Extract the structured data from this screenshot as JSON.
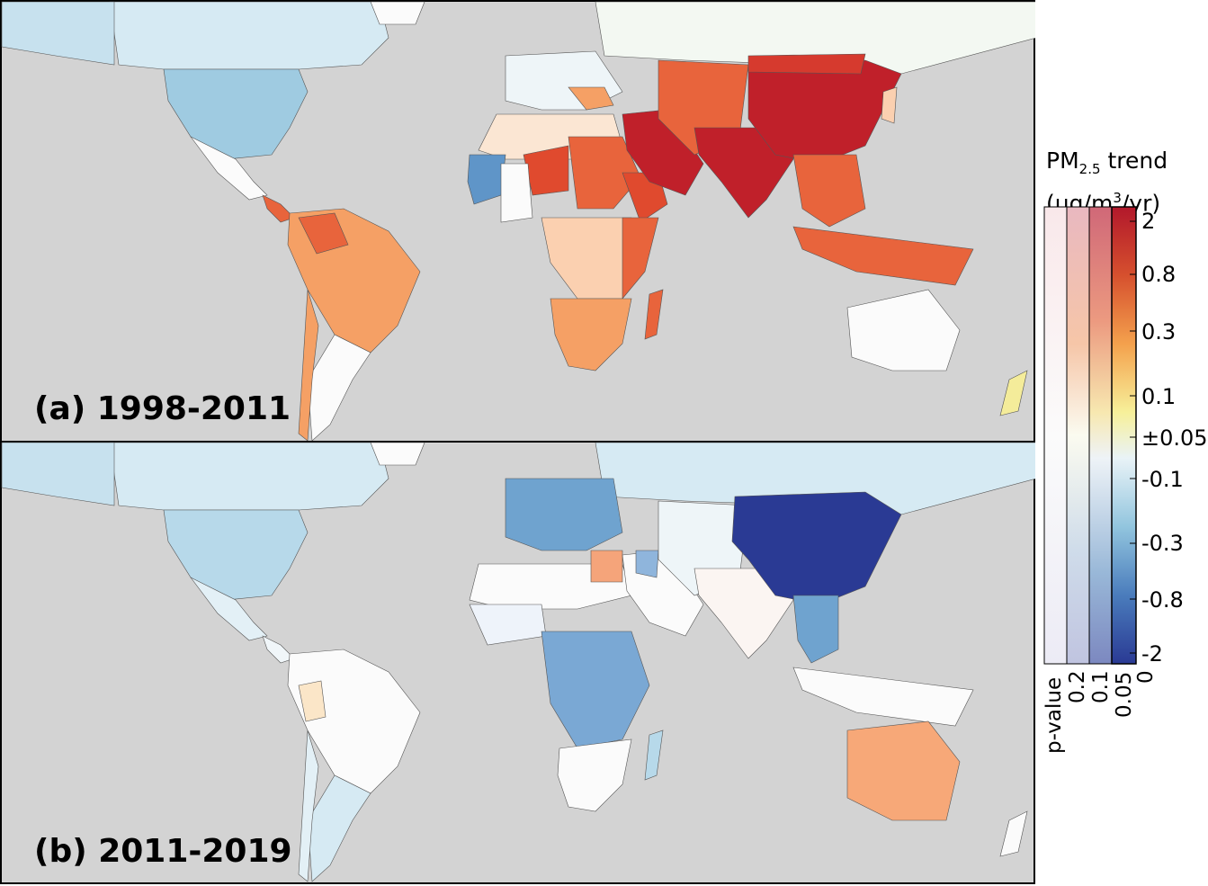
{
  "panels": [
    {
      "label": "(a) 1998-2011"
    },
    {
      "label": "(b) 2011-2019"
    }
  ],
  "legend": {
    "title_main": "PM",
    "title_sub": "2.5",
    "title_rest": " trend",
    "units_pre": "(μg/m",
    "units_sup": "3",
    "units_post": "/yr)",
    "ticks": [
      "2",
      "0.8",
      "0.3",
      "0.1",
      "±0.05",
      "-0.1",
      "-0.3",
      "-0.8",
      "-2"
    ],
    "pvalue_axis": "p-value",
    "pvalue_ticks": [
      "0.2",
      "0.1",
      "0.05",
      "0"
    ]
  },
  "colors": {
    "ocean": "#d3d3d3",
    "strong_increase": "#c0202a",
    "increase": "#e8643c",
    "moderate_increase": "#f5a065",
    "slight_increase": "#fbd0b0",
    "neutral": "#fbfbfb",
    "slight_decrease": "#d3e8f2",
    "decrease": "#9fcbe1",
    "moderate_decrease": "#5f95c8",
    "strong_decrease": "#2a3a94"
  }
}
